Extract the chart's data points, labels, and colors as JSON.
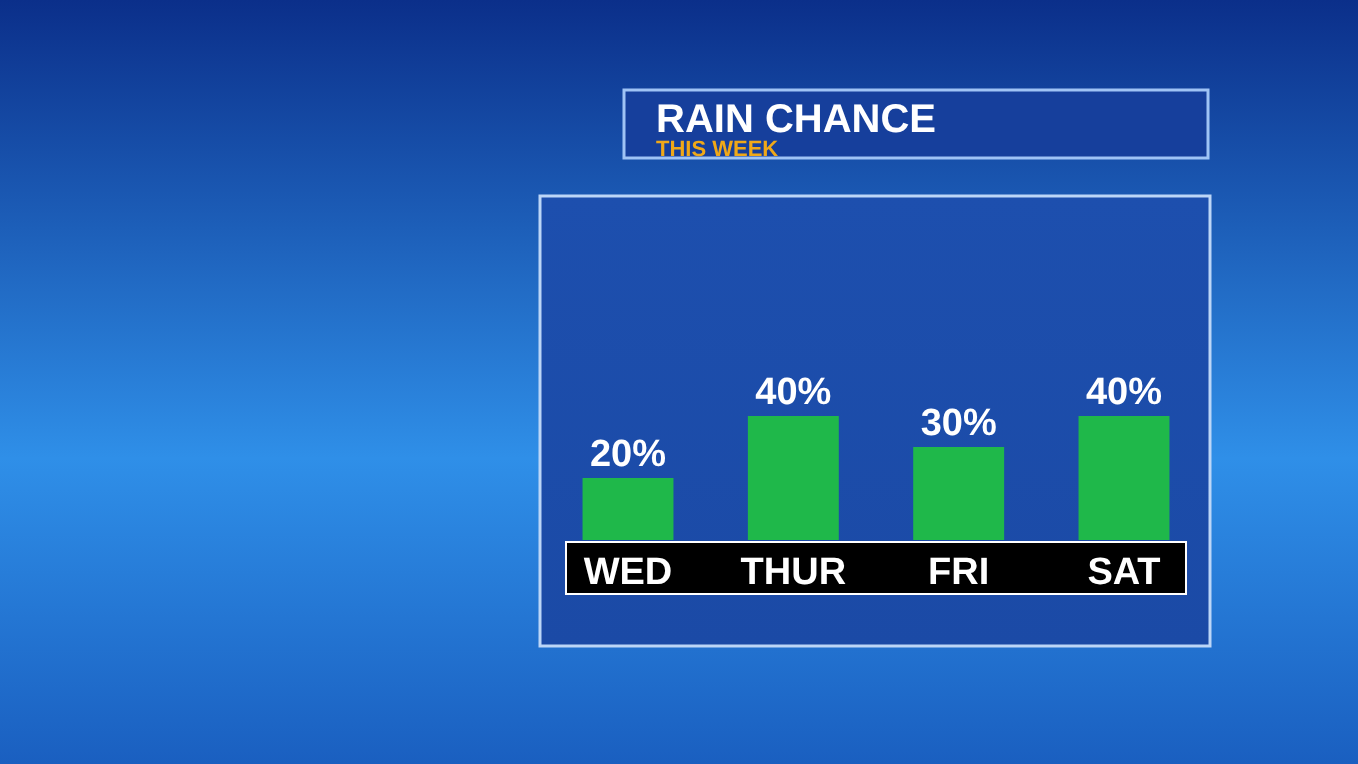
{
  "chart_data": {
    "type": "bar",
    "title": "RAIN CHANCE",
    "subtitle": "THIS WEEK",
    "categories": [
      "WED",
      "THUR",
      "FRI",
      "SAT"
    ],
    "values": [
      20,
      40,
      30,
      40
    ],
    "color": "#1fb84a",
    "value_labels": [
      "20%",
      "40%",
      "30%",
      "40%"
    ]
  }
}
